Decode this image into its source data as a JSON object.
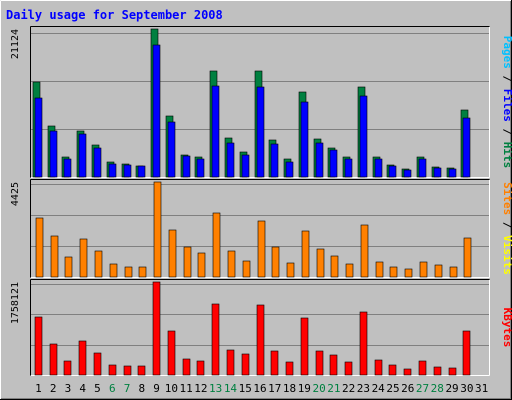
{
  "chart_data": {
    "type": "bar",
    "title": "Daily usage for September 2008",
    "categories": [
      "1",
      "2",
      "3",
      "4",
      "5",
      "6",
      "7",
      "8",
      "9",
      "10",
      "11",
      "12",
      "13",
      "14",
      "15",
      "16",
      "17",
      "18",
      "19",
      "20",
      "21",
      "22",
      "23",
      "24",
      "25",
      "26",
      "27",
      "28",
      "29",
      "30",
      "31"
    ],
    "weekend_days": [
      "6",
      "7",
      "13",
      "14",
      "20",
      "21",
      "27",
      "28"
    ],
    "panels": [
      {
        "ymax_label": "21124",
        "ylim": [
          0,
          21124
        ],
        "labels": [
          {
            "text": "Pages",
            "color": "#00c0ff"
          },
          {
            "text": " / ",
            "color": "#000000"
          },
          {
            "text": "Files",
            "color": "#0000ff"
          },
          {
            "text": " / ",
            "color": "#000000"
          },
          {
            "text": "Hits",
            "color": "#008040"
          }
        ],
        "series": [
          {
            "name": "Hits",
            "color": "#008040",
            "values": [
              13600,
              7300,
              2800,
              6600,
              4500,
              2100,
              1800,
              1600,
              21124,
              8700,
              3200,
              2800,
              15100,
              5600,
              3500,
              15100,
              5300,
              2500,
              12100,
              5400,
              4100,
              2800,
              12900,
              2900,
              1700,
              1200,
              2800,
              1400,
              1300,
              9500,
              0
            ]
          },
          {
            "name": "Files",
            "color": "#0000ff",
            "values": [
              11300,
              6500,
              2500,
              6200,
              4100,
              1900,
              1700,
              1500,
              18900,
              7800,
              3000,
              2600,
              13000,
              4900,
              3100,
              12900,
              4700,
              2200,
              10700,
              4800,
              3800,
              2500,
              11600,
              2600,
              1500,
              1000,
              2500,
              1300,
              1100,
              8400,
              0
            ]
          },
          {
            "name": "Pages",
            "color": "#00c0ff",
            "values": [
              0,
              0,
              0,
              0,
              0,
              0,
              0,
              0,
              0,
              0,
              0,
              0,
              0,
              0,
              0,
              0,
              0,
              0,
              0,
              0,
              0,
              0,
              0,
              0,
              0,
              0,
              0,
              0,
              0,
              0,
              0
            ]
          }
        ]
      },
      {
        "ymax_label": "4425",
        "ylim": [
          0,
          4425
        ],
        "labels": [
          {
            "text": "Sites",
            "color": "#ff8000"
          },
          {
            "text": " / ",
            "color": "#000000"
          },
          {
            "text": "Visits",
            "color": "#ffff00"
          }
        ],
        "series": [
          {
            "name": "Visits",
            "color": "#ffff00",
            "values": [
              0,
              0,
              0,
              0,
              0,
              0,
              0,
              0,
              0,
              0,
              0,
              0,
              0,
              0,
              0,
              0,
              0,
              0,
              0,
              0,
              0,
              0,
              0,
              0,
              0,
              0,
              0,
              0,
              0,
              0,
              0
            ]
          },
          {
            "name": "Sites",
            "color": "#ff8000",
            "values": [
              2750,
              1900,
              950,
              1750,
              1200,
              600,
              450,
              450,
              4425,
              2200,
              1400,
              1100,
              3000,
              1200,
              750,
              2600,
              1400,
              650,
              2150,
              1300,
              1000,
              600,
              2400,
              700,
              450,
              350,
              700,
              550,
              450,
              1800,
              0
            ]
          }
        ]
      },
      {
        "ymax_label": "1758121",
        "ylim": [
          0,
          1758121
        ],
        "labels": [
          {
            "text": "KBytes",
            "color": "#ff0000"
          }
        ],
        "series": [
          {
            "name": "KBytes",
            "color": "#ff0000",
            "values": [
              1100000,
              580000,
              260000,
              650000,
              420000,
              190000,
              170000,
              170000,
              1758121,
              830000,
              300000,
              270000,
              1350000,
              470000,
              390000,
              1330000,
              450000,
              250000,
              1080000,
              460000,
              380000,
              240000,
              1200000,
              280000,
              180000,
              120000,
              260000,
              150000,
              140000,
              840000,
              0
            ]
          }
        ]
      }
    ]
  }
}
